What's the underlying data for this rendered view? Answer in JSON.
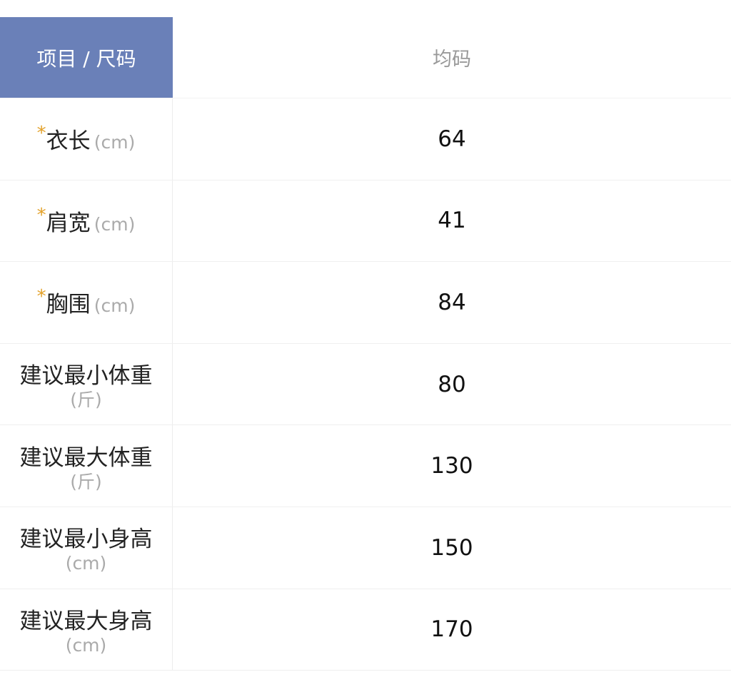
{
  "header": {
    "item_label": "项目 / 尺码",
    "size_label": "均码"
  },
  "colors": {
    "header_bg": "#6a80b8",
    "required_star": "#e3a12a"
  },
  "rows": [
    {
      "label": "衣长",
      "unit": "(cm)",
      "required": true,
      "value": "64"
    },
    {
      "label": "肩宽",
      "unit": "(cm)",
      "required": true,
      "value": "41"
    },
    {
      "label": "胸围",
      "unit": "(cm)",
      "required": true,
      "value": "84"
    },
    {
      "label": "建议最小体重",
      "unit": "(斤)",
      "required": false,
      "value": "80"
    },
    {
      "label": "建议最大体重",
      "unit": "(斤)",
      "required": false,
      "value": "130"
    },
    {
      "label": "建议最小身高",
      "unit": "(cm)",
      "required": false,
      "value": "150"
    },
    {
      "label": "建议最大身高",
      "unit": "(cm)",
      "required": false,
      "value": "170"
    }
  ]
}
